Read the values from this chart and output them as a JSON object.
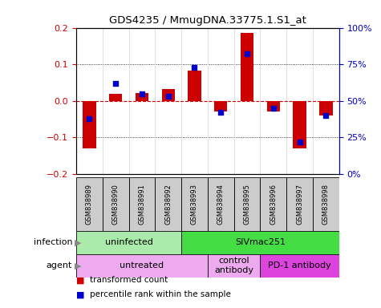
{
  "title": "GDS4235 / MmugDNA.33775.1.S1_at",
  "samples": [
    "GSM838989",
    "GSM838990",
    "GSM838991",
    "GSM838992",
    "GSM838993",
    "GSM838994",
    "GSM838995",
    "GSM838996",
    "GSM838997",
    "GSM838998"
  ],
  "red_bars": [
    -0.13,
    0.02,
    0.022,
    0.032,
    0.082,
    -0.03,
    0.185,
    -0.03,
    -0.13,
    -0.04
  ],
  "blue_squares": [
    38,
    62,
    55,
    53,
    73,
    42,
    82,
    45,
    22,
    40
  ],
  "ylim": [
    -0.2,
    0.2
  ],
  "right_ylim": [
    0,
    100
  ],
  "yticks_left": [
    -0.2,
    -0.1,
    0.0,
    0.1,
    0.2
  ],
  "yticks_right": [
    0,
    25,
    50,
    75,
    100
  ],
  "ytick_labels_right": [
    "0%",
    "25%",
    "50%",
    "75%",
    "100%"
  ],
  "hline_color": "#cc0000",
  "bar_color": "#cc0000",
  "square_color": "#0000cc",
  "infection_labels": [
    {
      "text": "uninfected",
      "start": 0,
      "end": 4
    },
    {
      "text": "SIVmac251",
      "start": 4,
      "end": 10
    }
  ],
  "infection_colors": [
    "#aaeaaa",
    "#44dd44"
  ],
  "agent_labels": [
    {
      "text": "untreated",
      "start": 0,
      "end": 5
    },
    {
      "text": "control\nantibody",
      "start": 5,
      "end": 7
    },
    {
      "text": "PD-1 antibody",
      "start": 7,
      "end": 10
    }
  ],
  "agent_colors": [
    "#eeaaee",
    "#eeaaee",
    "#dd44dd"
  ],
  "row_label_infection": "infection",
  "row_label_agent": "agent",
  "legend_items": [
    [
      "transformed count",
      "#cc0000"
    ],
    [
      "percentile rank within the sample",
      "#0000cc"
    ]
  ],
  "sample_bg_color": "#cccccc",
  "arrow_color": "#888888"
}
